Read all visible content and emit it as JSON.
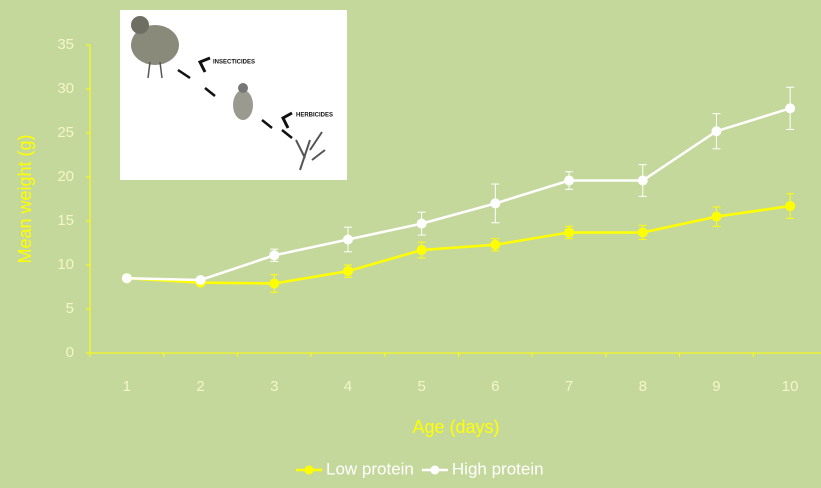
{
  "chart_data": {
    "type": "line",
    "x_label": "Age (days)",
    "y_label": "Mean weight (g)",
    "categories": [
      "1",
      "2",
      "3",
      "4",
      "5",
      "6",
      "7",
      "8",
      "9",
      "10"
    ],
    "series": [
      {
        "name": "Low protein",
        "color": "#ffff00",
        "values": [
          8.5,
          8.0,
          7.9,
          9.3,
          11.7,
          12.3,
          13.7,
          13.7,
          15.5,
          16.7
        ],
        "errors": [
          0,
          0.3,
          1.0,
          0.7,
          0.9,
          0.7,
          0.7,
          0.8,
          1.1,
          1.4
        ]
      },
      {
        "name": "High protein",
        "color": "#ffffff",
        "values": [
          8.5,
          8.3,
          11.1,
          12.9,
          14.7,
          17.0,
          19.6,
          19.6,
          25.2,
          27.8
        ],
        "errors": [
          0,
          0.3,
          0.7,
          1.4,
          1.3,
          2.2,
          1.0,
          1.8,
          2.0,
          2.4
        ]
      }
    ],
    "ylim": [
      0,
      35
    ],
    "yticks": [
      0,
      5,
      10,
      15,
      20,
      25,
      30,
      35
    ],
    "grid": false,
    "legend": "bottom",
    "annotations": [
      "INSECTICIDES",
      "HERBICIDES"
    ]
  }
}
